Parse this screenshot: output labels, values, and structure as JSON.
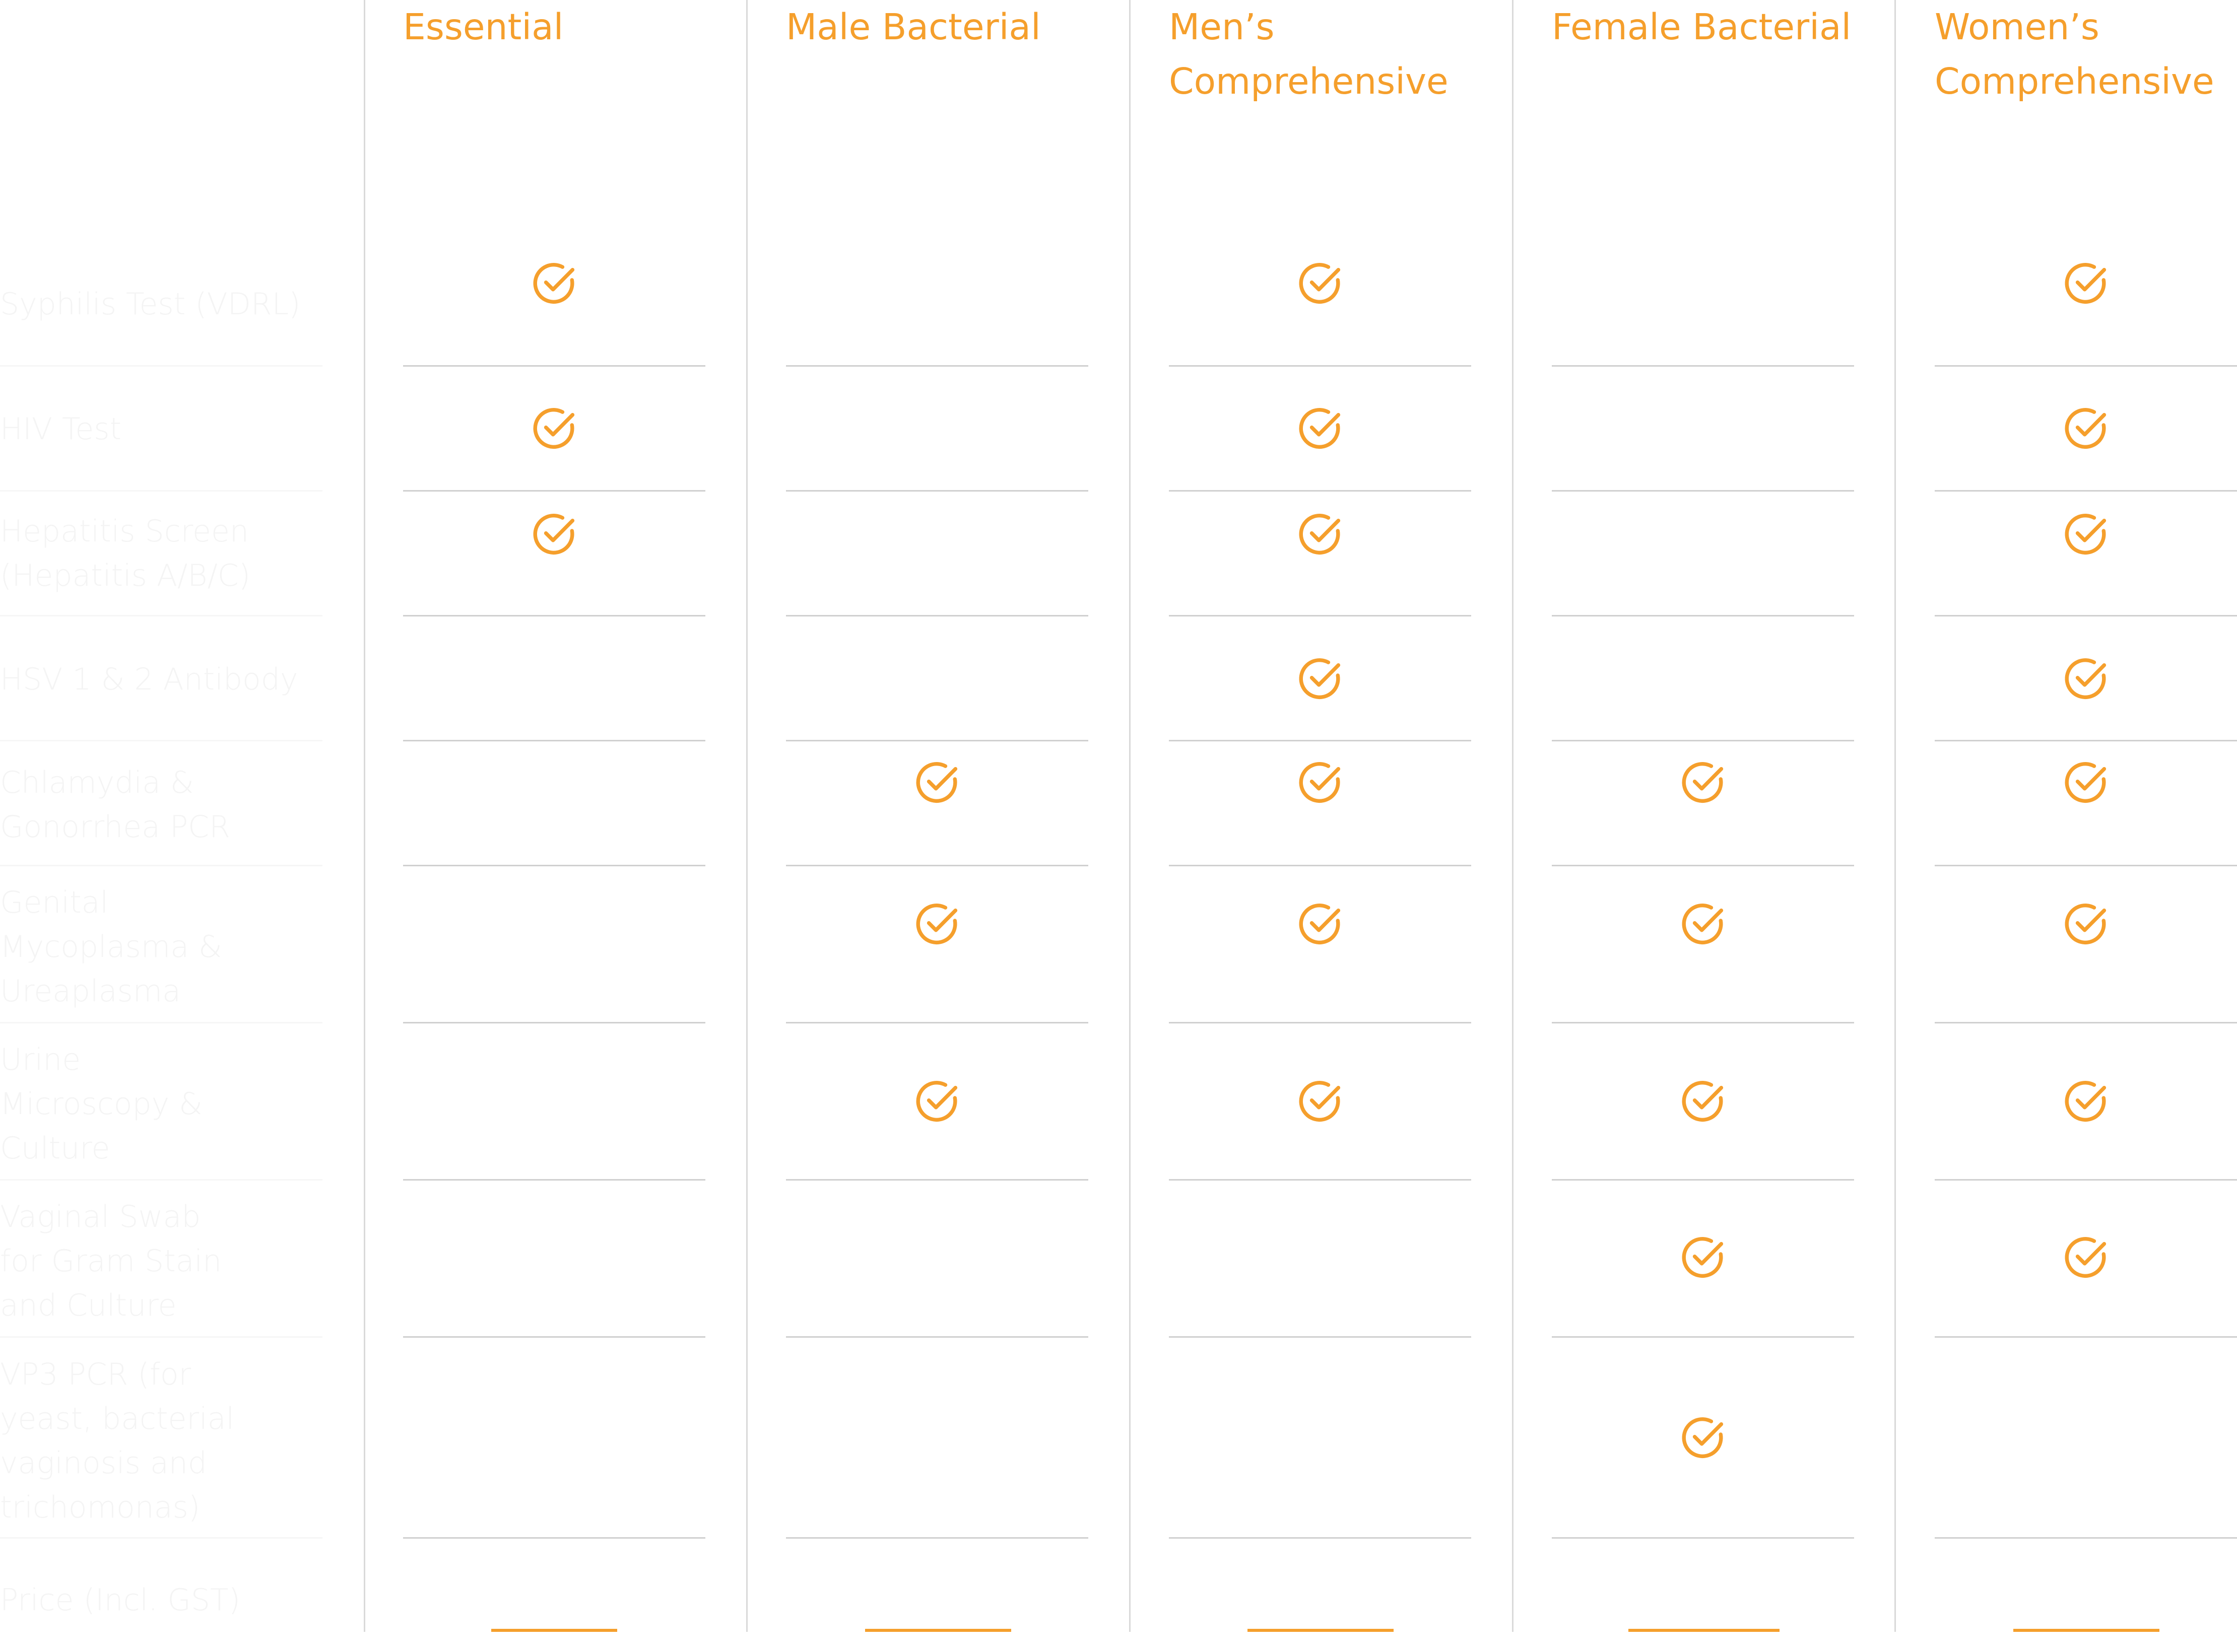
{
  "columns": [
    {
      "name": "Essential"
    },
    {
      "name": "Male Bacterial"
    },
    {
      "name": "Men’s\nComprehensive"
    },
    {
      "name": "Female Bacterial"
    },
    {
      "name": "Women’s\nComprehensive"
    }
  ],
  "rows": [
    {
      "label": "Syphilis Test (VDRL)",
      "checks": [
        true,
        false,
        true,
        false,
        true
      ]
    },
    {
      "label": "HIV Test",
      "checks": [
        true,
        false,
        true,
        false,
        true
      ]
    },
    {
      "label": "Hepatitis Screen\n(Hepatitis A/B/C)",
      "checks": [
        true,
        false,
        true,
        false,
        true
      ]
    },
    {
      "label": "HSV 1 & 2 Antibody",
      "checks": [
        false,
        false,
        true,
        false,
        true
      ]
    },
    {
      "label": "Chlamydia &\nGonorrhea PCR",
      "checks": [
        false,
        true,
        true,
        true,
        true
      ]
    },
    {
      "label": "Genital\nMycoplasma &\nUreaplasma",
      "checks": [
        false,
        true,
        true,
        true,
        true
      ]
    },
    {
      "label": "Urine\nMicroscopy &\nCulture",
      "checks": [
        false,
        true,
        true,
        true,
        true
      ]
    },
    {
      "label": "Vaginal Swab\nfor Gram Stain\nand Culture",
      "checks": [
        false,
        false,
        false,
        true,
        true
      ]
    },
    {
      "label": "VP3 PCR (for\nyeast, bacterial\nvaginosis and\ntrichomonas)",
      "checks": [
        false,
        false,
        false,
        true,
        false
      ]
    }
  ],
  "price_row": {
    "label": "Price (Incl. GST)"
  },
  "icons": {
    "check": "check-circle-icon"
  },
  "colors": {
    "accent": "#f59f2c",
    "divider": "#d9d9d9",
    "label_text": "#f4f4f4"
  }
}
